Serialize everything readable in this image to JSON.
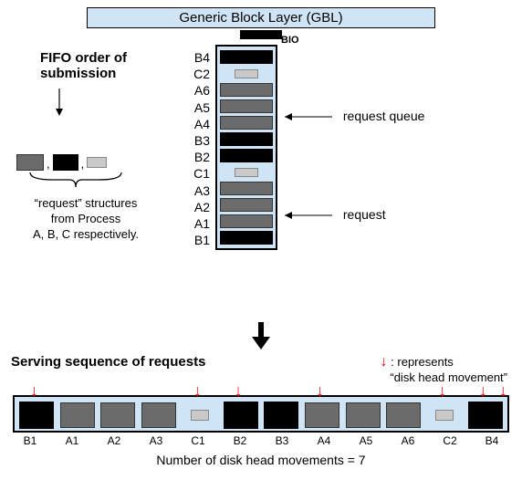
{
  "colors": {
    "panel_bg": "#cfe5f5",
    "procA": "#6b6b6b",
    "procB": "#000000",
    "procC": "#c9c9c9",
    "arrow_red": "#ff0000",
    "border": "#000000"
  },
  "gbl": {
    "label": "Generic Block Layer (GBL)",
    "bio_label": "BIO"
  },
  "fifo": {
    "line1": "FIFO order of",
    "line2": "submission"
  },
  "legend": {
    "caption1": "“request” structures",
    "caption2": "from Process",
    "caption3": "A, B, C respectively.",
    "swatches": [
      {
        "type": "A",
        "color": "#6b6b6b"
      },
      {
        "type": "B",
        "color": "#000000"
      },
      {
        "type": "C",
        "color": "#c9c9c9"
      }
    ]
  },
  "queue": {
    "callout_top": "request queue",
    "callout_bottom": "request",
    "items": [
      {
        "label": "B4",
        "type": "B"
      },
      {
        "label": "C2",
        "type": "C"
      },
      {
        "label": "A6",
        "type": "A"
      },
      {
        "label": "A5",
        "type": "A"
      },
      {
        "label": "A4",
        "type": "A"
      },
      {
        "label": "B3",
        "type": "B"
      },
      {
        "label": "B2",
        "type": "B"
      },
      {
        "label": "C1",
        "type": "C"
      },
      {
        "label": "A3",
        "type": "A"
      },
      {
        "label": "A2",
        "type": "A"
      },
      {
        "label": "A1",
        "type": "A"
      },
      {
        "label": "B1",
        "type": "B"
      }
    ]
  },
  "serving": {
    "title": "Serving sequence of requests",
    "legend_symbol": "↓",
    "legend_text1": ": represents",
    "legend_text2": "“disk head movement”",
    "sequence": [
      {
        "label": "B1",
        "type": "B",
        "head_move": true
      },
      {
        "label": "A1",
        "type": "A",
        "head_move": false
      },
      {
        "label": "A2",
        "type": "A",
        "head_move": false
      },
      {
        "label": "A3",
        "type": "A",
        "head_move": false
      },
      {
        "label": "C1",
        "type": "C",
        "head_move": true
      },
      {
        "label": "B2",
        "type": "B",
        "head_move": true
      },
      {
        "label": "B3",
        "type": "B",
        "head_move": false
      },
      {
        "label": "A4",
        "type": "A",
        "head_move": true
      },
      {
        "label": "A5",
        "type": "A",
        "head_move": false
      },
      {
        "label": "A6",
        "type": "A",
        "head_move": false
      },
      {
        "label": "C2",
        "type": "C",
        "head_move": true
      },
      {
        "label": "B4",
        "type": "B",
        "head_move": true
      }
    ],
    "end_head_move": true
  },
  "footer": {
    "text": "Number of disk head movements = 7",
    "value": 7
  }
}
